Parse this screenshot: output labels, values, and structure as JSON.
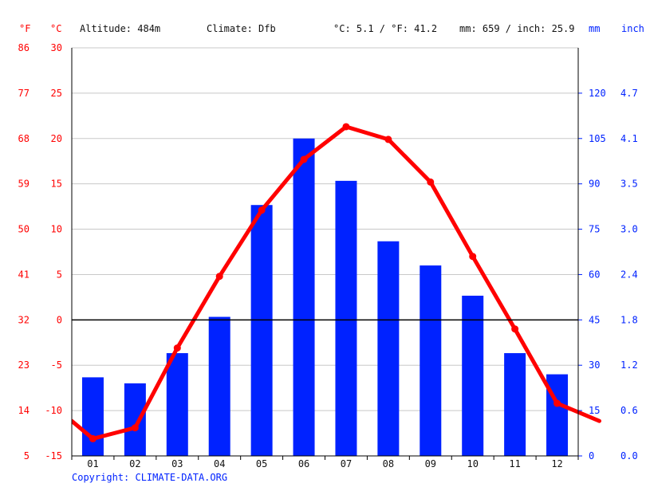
{
  "header": {
    "unit_f": "°F",
    "unit_c": "°C",
    "altitude": "Altitude: 484m",
    "climate": "Climate: Dfb",
    "temp_avg": "°C: 5.1 / °F: 41.2",
    "precip_total": "mm: 659 / inch: 25.9",
    "unit_mm": "mm",
    "unit_inch": "inch"
  },
  "copyright": "Copyright: CLIMATE-DATA.ORG",
  "colors": {
    "temp": "#ff0000",
    "precip": "#0022ff",
    "grid": "#c8c8c8",
    "zero": "#000000"
  },
  "chart_data": {
    "type": "bar",
    "categories": [
      "01",
      "02",
      "03",
      "04",
      "05",
      "06",
      "07",
      "08",
      "09",
      "10",
      "11",
      "12"
    ],
    "series": [
      {
        "kind": "bar",
        "axis": "right",
        "values": [
          26,
          24,
          34,
          46,
          83,
          105,
          91,
          71,
          63,
          53,
          34,
          27
        ]
      },
      {
        "kind": "line",
        "axis": "left",
        "values": [
          -13.1,
          -11.9,
          -3.1,
          4.8,
          12.1,
          17.7,
          21.3,
          19.9,
          15.2,
          7.0,
          -1.0,
          -9.2
        ]
      }
    ],
    "y_left": {
      "range": [
        -15,
        30
      ],
      "ticks_c": [
        "30",
        "25",
        "20",
        "15",
        "10",
        "5",
        "0",
        "-5",
        "-10",
        "-15"
      ],
      "ticks_f": [
        "86",
        "77",
        "68",
        "59",
        "50",
        "41",
        "32",
        "23",
        "14",
        "5"
      ]
    },
    "y_right": {
      "range": [
        0,
        135
      ],
      "ticks_mm": [
        "120",
        "105",
        "90",
        "75",
        "60",
        "45",
        "30",
        "15",
        "0"
      ],
      "ticks_inch": [
        "4.7",
        "4.1",
        "3.5",
        "3.0",
        "2.4",
        "1.8",
        "1.2",
        "0.6",
        "0.0"
      ]
    },
    "grid": true
  }
}
